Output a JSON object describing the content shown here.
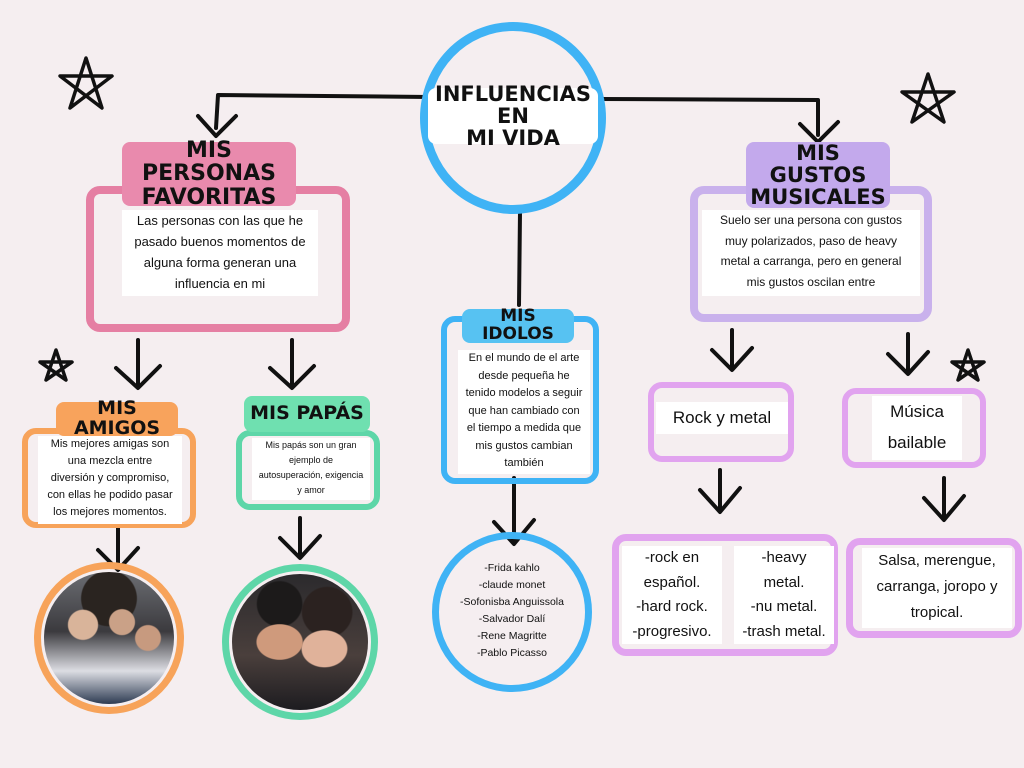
{
  "center": {
    "title": "INFLUENCIAS EN\nMI VIDA"
  },
  "personas": {
    "title": "MIS PERSONAS\nFAVORITAS",
    "text": "Las personas con las que he\npasado buenos momentos de\nalguna forma generan una\ninfluencia en mi"
  },
  "amigos": {
    "title": "MIS AMIGOS",
    "text": "Mis mejores amigas son\nuna mezcla entre\ndiversión y compromiso,\ncon ellas he podido pasar\nlos mejores momentos."
  },
  "papas": {
    "title": "MIS PAPÁS",
    "text": "Mis papás son un gran\nejemplo de\nautosuperación, exigencia\ny amor"
  },
  "idolos": {
    "title": "MIS IDOLOS",
    "text": "En el mundo de el arte\ndesde pequeña he\ntenido modelos a seguir\nque han cambiado con\nel tiempo a medida que\nmis gustos cambian\ntambién",
    "list": "-Frida kahlo\n-claude monet\n-Sofonisba Anguissola\n-Salvador Dalí\n-Rene Magritte\n-Pablo Picasso"
  },
  "gustos": {
    "title": "MIS GUSTOS\nMUSICALES",
    "text": "Suelo ser una persona con gustos\nmuy polarizados, paso de heavy\nmetal a carranga, pero en general\nmis gustos oscilan entre"
  },
  "rock": {
    "title": "Rock y metal",
    "left": "-rock en\nespañol.\n-hard rock.\n-progresivo.",
    "right": "-heavy\nmetal.\n-nu metal.\n-trash metal."
  },
  "bailable": {
    "title": "Música\nbailable",
    "text": "Salsa, merengue,\ncarranga, joropo y\ntropical."
  },
  "colors": {
    "background": "#f5eef0",
    "blue": "#3fb3f5",
    "pink": "#e57fa3",
    "pink_label": "#e98aad",
    "orange": "#f7a35a",
    "orange_label": "#f8a35c",
    "green": "#5ed6a8",
    "green_label": "#6fe0b0",
    "blue_label": "#57c2f2",
    "purple": "#c9b1ec",
    "purple_label": "#c3a9ec",
    "violet": "#e1a3ef"
  },
  "icons": [
    "star-icon",
    "photo-friends",
    "photo-parents"
  ]
}
